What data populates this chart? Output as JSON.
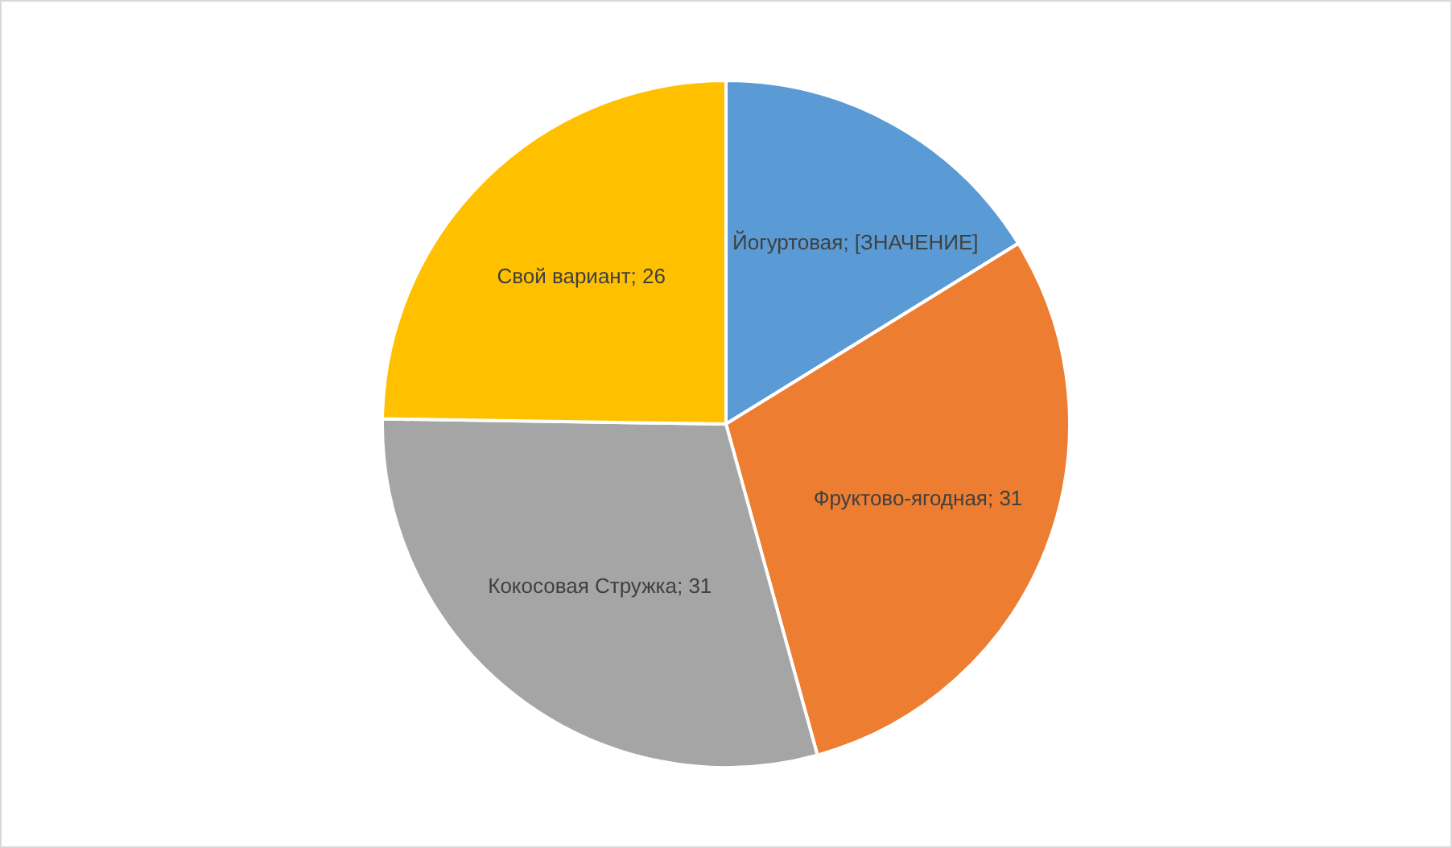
{
  "chart_data": {
    "type": "pie",
    "categories": [
      "Йогуртовая",
      "Фруктово-ягодная",
      "Кокосовая Стружка",
      "Свой вариант"
    ],
    "values": [
      17,
      31,
      31,
      26
    ],
    "value_labels": [
      "[ЗНАЧЕНИЕ]",
      "31",
      "31",
      "26"
    ],
    "colors": [
      "#5b9bd5",
      "#ed7d31",
      "#a5a5a5",
      "#ffc000"
    ],
    "legend": false
  }
}
